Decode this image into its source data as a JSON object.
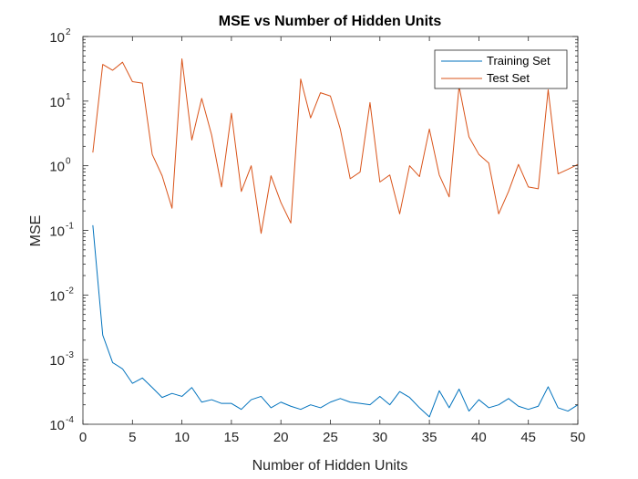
{
  "chart_data": {
    "type": "line",
    "title": "MSE vs Number of Hidden Units",
    "xlabel": "Number of Hidden Units",
    "ylabel": "MSE",
    "xlim": [
      0,
      50
    ],
    "ylim": [
      0.0001,
      100
    ],
    "yscale": "log",
    "grid": false,
    "legend_position": "top-right",
    "x_ticks": [
      0,
      5,
      10,
      15,
      20,
      25,
      30,
      35,
      40,
      45,
      50
    ],
    "y_ticks": [
      {
        "value": 0.0001,
        "base": "10",
        "exp": "-4"
      },
      {
        "value": 0.001,
        "base": "10",
        "exp": "-3"
      },
      {
        "value": 0.01,
        "base": "10",
        "exp": "-2"
      },
      {
        "value": 0.1,
        "base": "10",
        "exp": "-1"
      },
      {
        "value": 1,
        "base": "10",
        "exp": "0"
      },
      {
        "value": 10,
        "base": "10",
        "exp": "1"
      },
      {
        "value": 100,
        "base": "10",
        "exp": "2"
      }
    ],
    "x": [
      1,
      2,
      3,
      4,
      5,
      6,
      7,
      8,
      9,
      10,
      11,
      12,
      13,
      14,
      15,
      16,
      17,
      18,
      19,
      20,
      21,
      22,
      23,
      24,
      25,
      26,
      27,
      28,
      29,
      30,
      31,
      32,
      33,
      34,
      35,
      36,
      37,
      38,
      39,
      40,
      41,
      42,
      43,
      44,
      45,
      46,
      47,
      48,
      49,
      50
    ],
    "series": [
      {
        "name": "Training Set",
        "color": "#0072bd",
        "values": [
          0.12,
          0.0024,
          0.0009,
          0.00072,
          0.00043,
          0.00052,
          0.00037,
          0.00026,
          0.0003,
          0.00027,
          0.00037,
          0.00022,
          0.00024,
          0.00021,
          0.00021,
          0.00017,
          0.00024,
          0.00027,
          0.00018,
          0.00022,
          0.00019,
          0.00017,
          0.0002,
          0.00018,
          0.00022,
          0.00025,
          0.00022,
          0.00021,
          0.0002,
          0.00027,
          0.0002,
          0.00032,
          0.00026,
          0.00018,
          0.00013,
          0.00033,
          0.00018,
          0.00035,
          0.00016,
          0.00024,
          0.00018,
          0.0002,
          0.00025,
          0.00019,
          0.00017,
          0.00019,
          0.00038,
          0.00018,
          0.00016,
          0.0002
        ]
      },
      {
        "name": "Test Set",
        "color": "#d95319",
        "values": [
          1.6,
          37,
          30,
          40,
          20,
          19,
          1.5,
          0.7,
          0.22,
          45,
          2.5,
          11,
          3,
          0.47,
          6.5,
          0.4,
          1,
          0.09,
          0.7,
          0.27,
          0.13,
          22,
          5.5,
          13.5,
          12,
          3.7,
          0.63,
          0.8,
          9.5,
          0.56,
          0.72,
          0.18,
          1,
          0.68,
          3.7,
          0.72,
          0.33,
          17,
          2.8,
          1.5,
          1.1,
          0.18,
          0.4,
          1.05,
          0.47,
          0.44,
          15,
          0.75,
          0.88,
          1.05
        ]
      }
    ]
  }
}
